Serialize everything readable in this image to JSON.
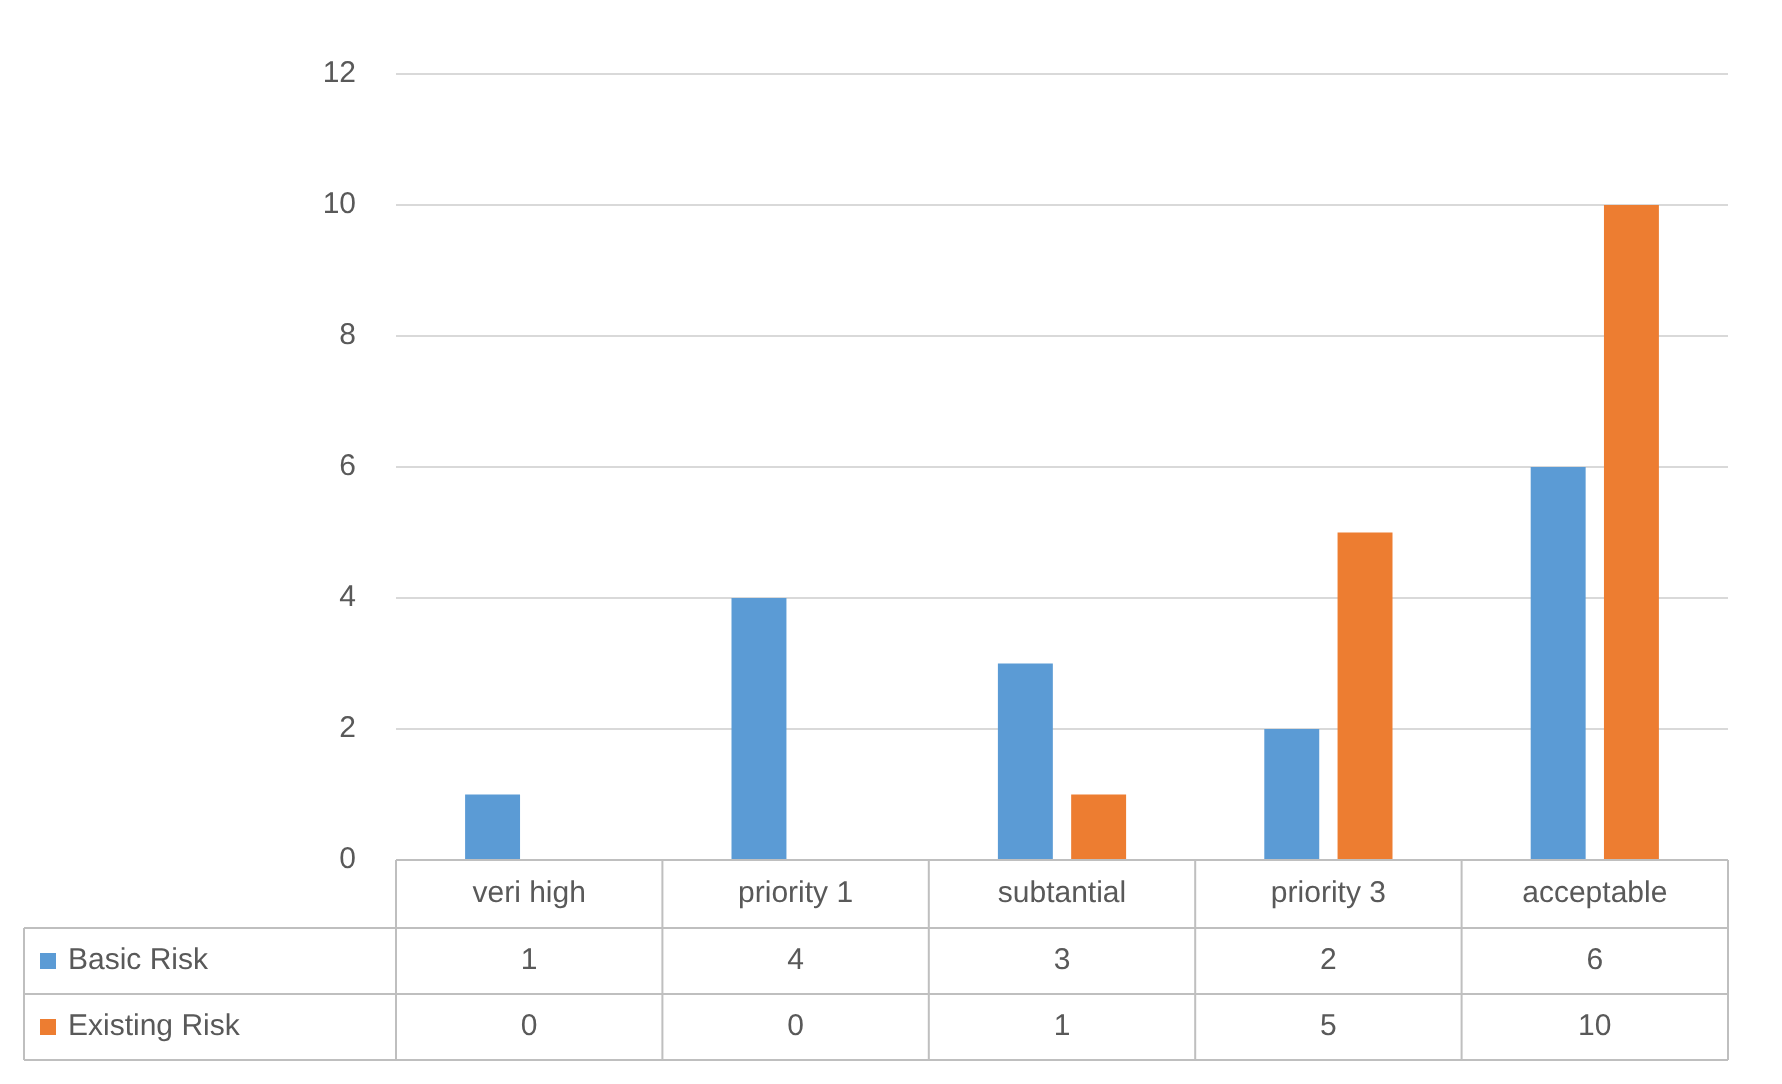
{
  "chart_data": {
    "type": "bar",
    "categories": [
      "veri high",
      "priority 1",
      "subtantial",
      "priority 3",
      "acceptable"
    ],
    "series": [
      {
        "name": "Basic Risk",
        "color": "#5b9bd5",
        "values": [
          1,
          4,
          3,
          2,
          6
        ]
      },
      {
        "name": "Existing Risk",
        "color": "#ed7d31",
        "values": [
          0,
          0,
          1,
          5,
          10
        ]
      }
    ],
    "ylim": [
      0,
      12
    ],
    "yticks": [
      0,
      2,
      4,
      6,
      8,
      10,
      12
    ],
    "grid": "y",
    "legend": "bottom",
    "data_labels": true
  }
}
